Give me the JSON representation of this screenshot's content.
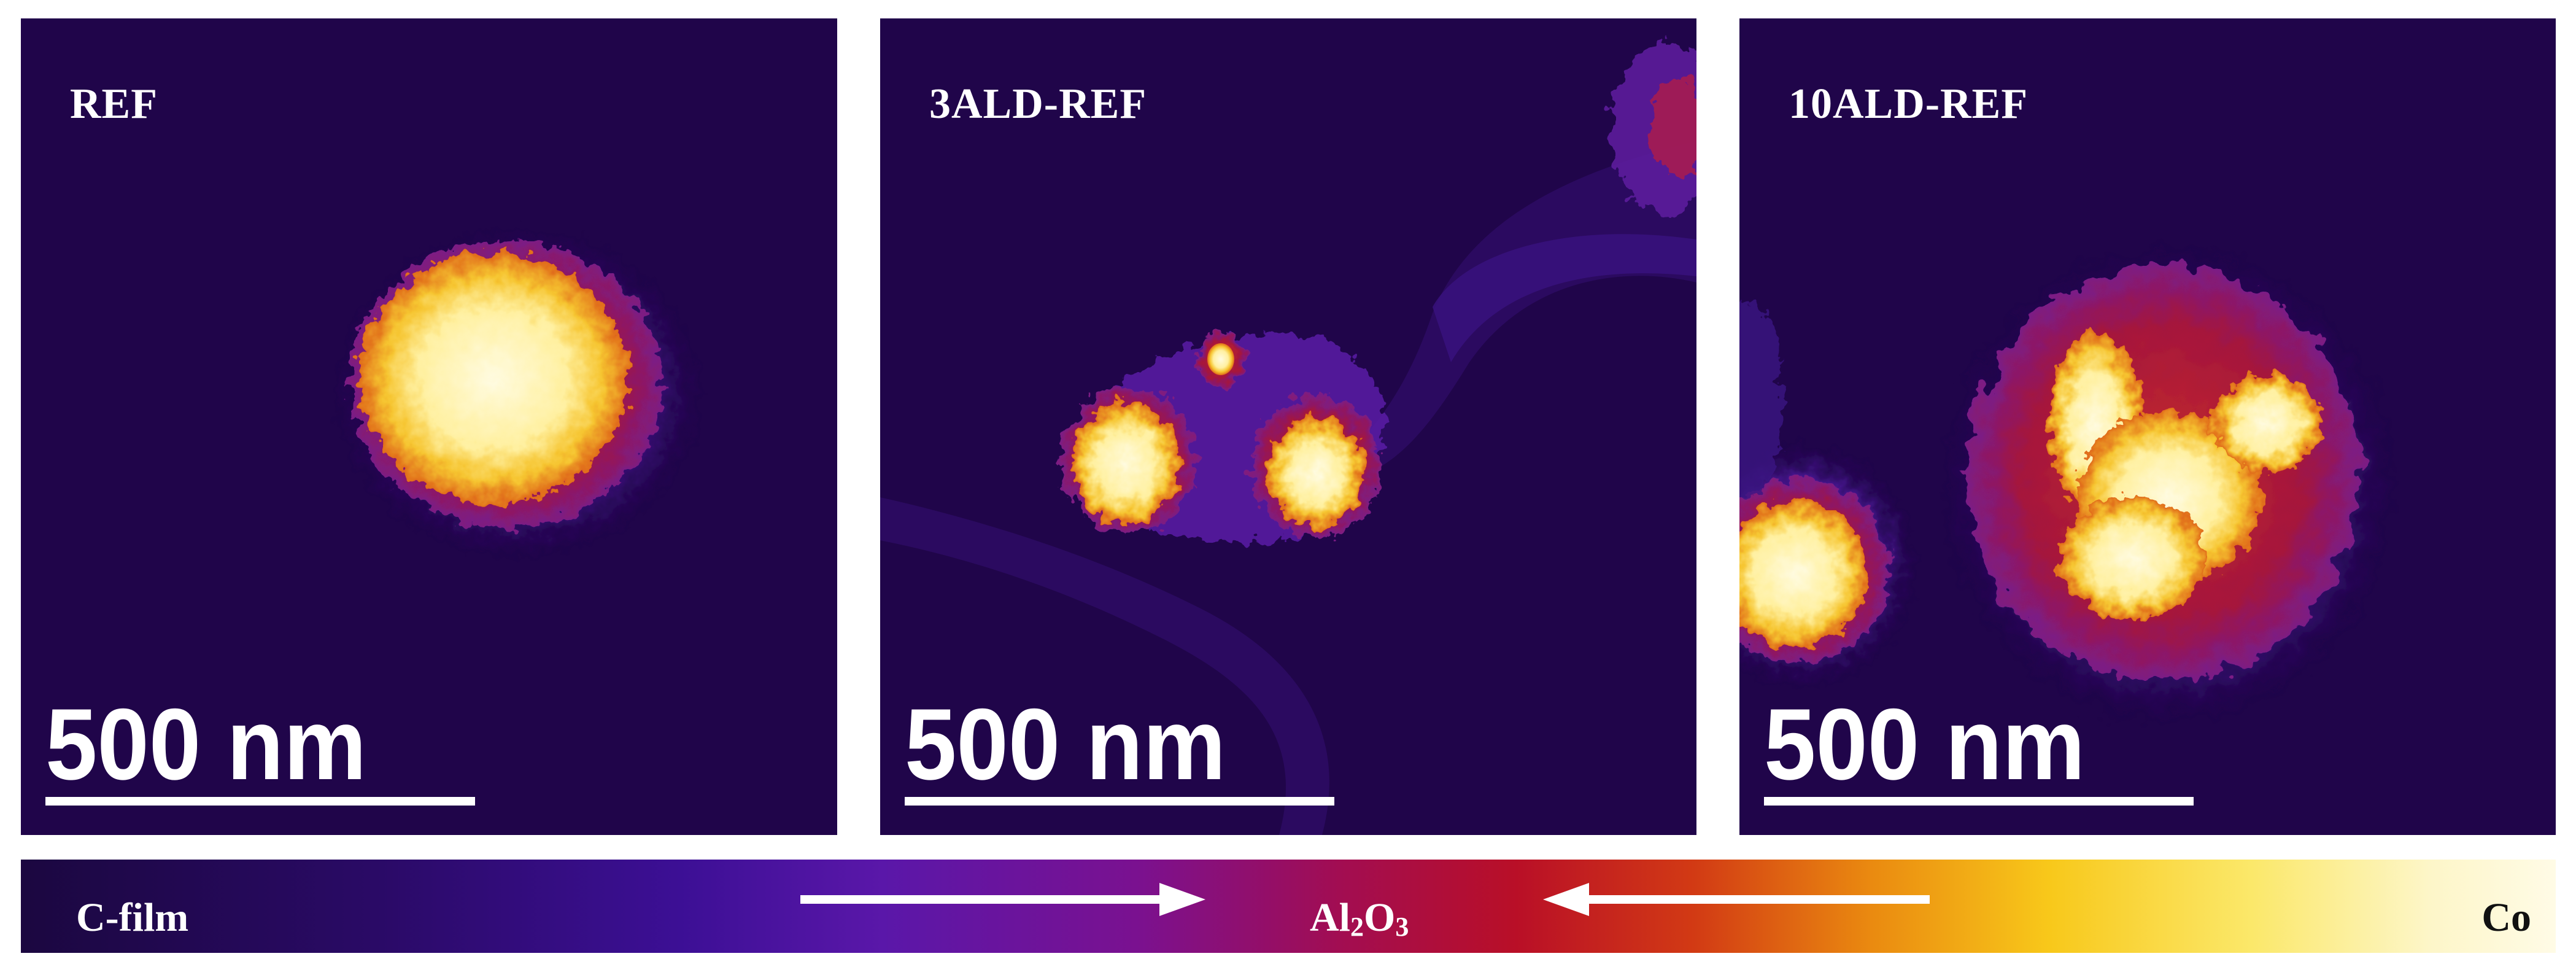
{
  "panels": [
    {
      "label": "REF",
      "scale_text": "500 nm"
    },
    {
      "label": "3ALD-REF",
      "scale_text": "500 nm"
    },
    {
      "label": "10ALD-REF",
      "scale_text": "500 nm"
    }
  ],
  "colorbar": {
    "left_label": "C-film",
    "middle_label_main": "Al",
    "middle_label_sub1": "2",
    "middle_label_mid": "O",
    "middle_label_sub2": "3",
    "right_label": "Co"
  },
  "colors": {
    "background": "#20054a",
    "shell": "#b0173f",
    "core": "#ffe98a",
    "halo": "#5b22a8"
  }
}
